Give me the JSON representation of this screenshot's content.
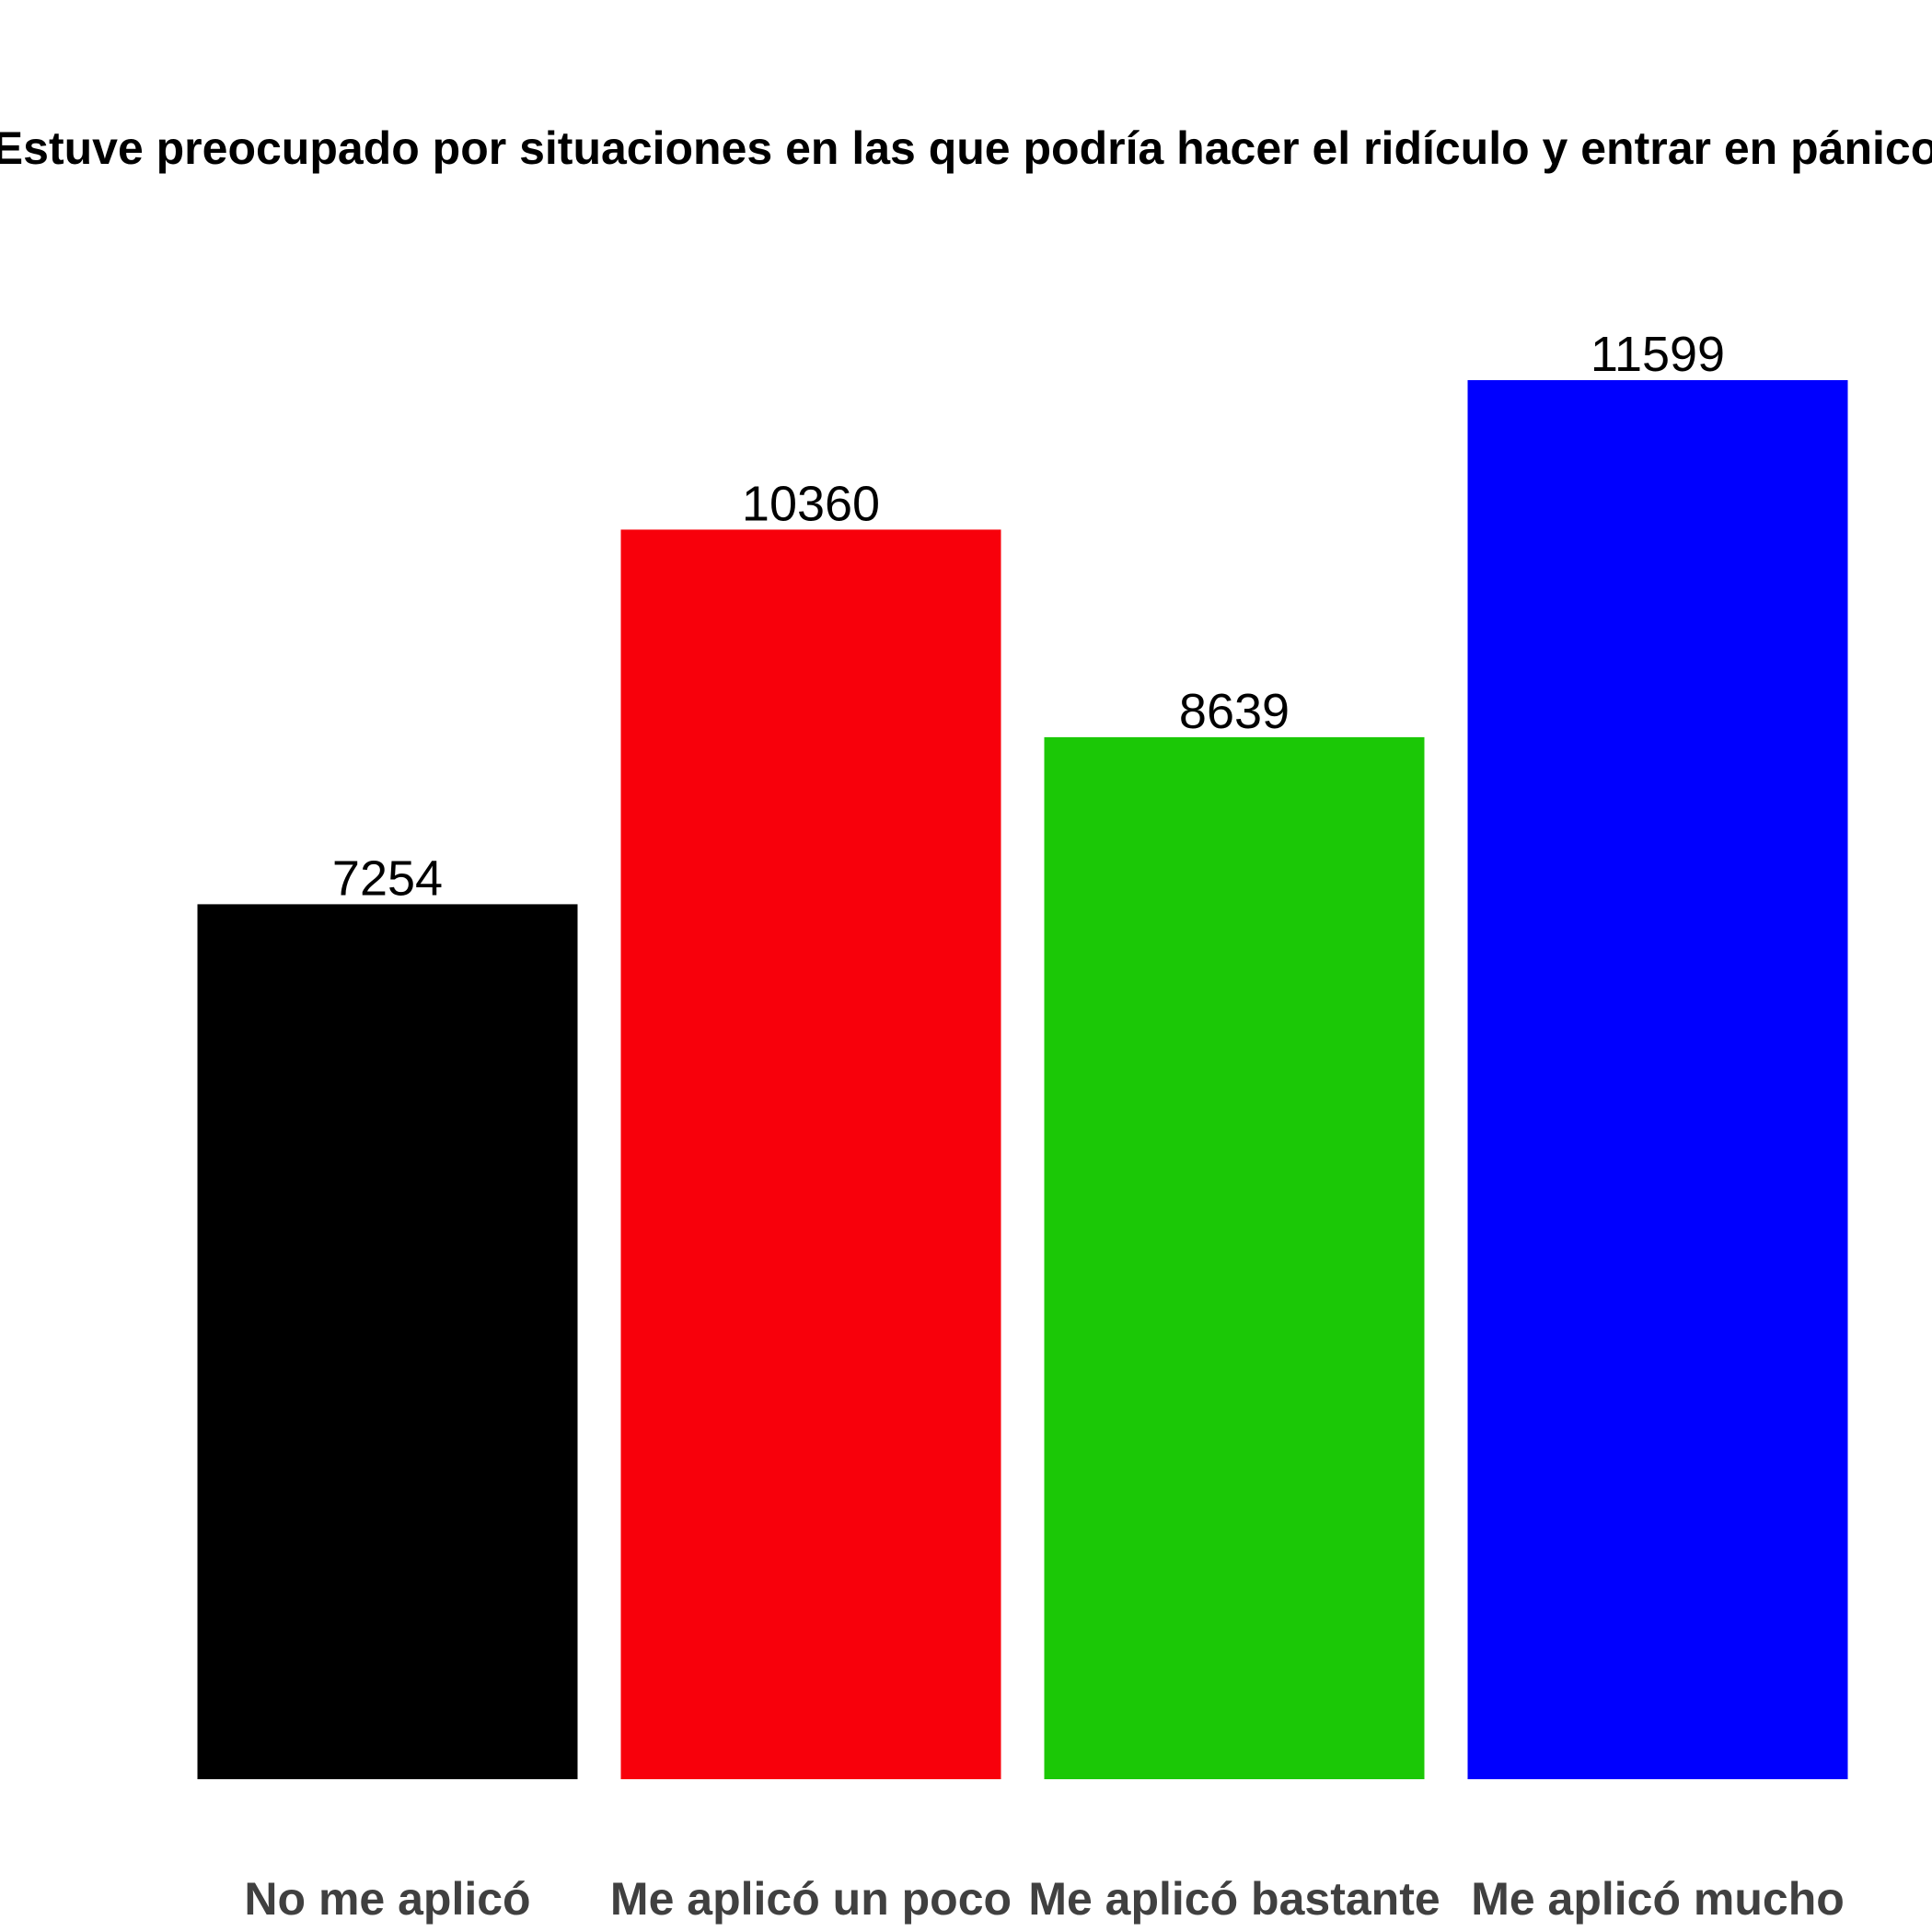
{
  "chart_data": {
    "type": "bar",
    "title": "Estuve preocupado por situaciones en las que podría hacer el ridículo y entrar en pánico",
    "xlabel": "",
    "ylabel": "",
    "categories": [
      "No me aplicó",
      "Me aplicó un poco",
      "Me aplicó bastante",
      "Me aplicó mucho"
    ],
    "values": [
      7254,
      10360,
      8639,
      11599
    ],
    "colors": [
      "#000000",
      "#F8000B",
      "#1BC806",
      "#0000FF"
    ],
    "ylim": [
      0,
      12000
    ],
    "grid": false,
    "legend": "none"
  }
}
